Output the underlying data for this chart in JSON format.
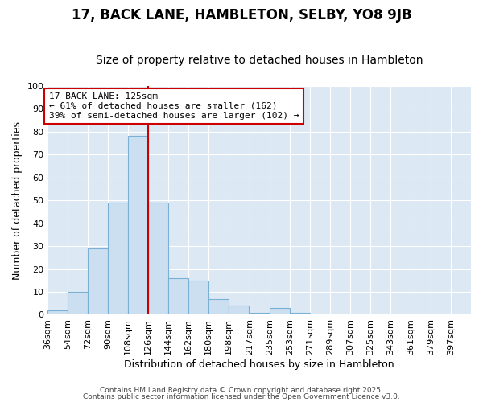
{
  "title": "17, BACK LANE, HAMBLETON, SELBY, YO8 9JB",
  "subtitle": "Size of property relative to detached houses in Hambleton",
  "xlabel": "Distribution of detached houses by size in Hambleton",
  "ylabel": "Number of detached properties",
  "bin_labels": [
    "36sqm",
    "54sqm",
    "72sqm",
    "90sqm",
    "108sqm",
    "126sqm",
    "144sqm",
    "162sqm",
    "180sqm",
    "198sqm",
    "217sqm",
    "235sqm",
    "253sqm",
    "271sqm",
    "289sqm",
    "307sqm",
    "325sqm",
    "343sqm",
    "361sqm",
    "379sqm",
    "397sqm"
  ],
  "bin_edges": [
    36,
    54,
    72,
    90,
    108,
    126,
    144,
    162,
    180,
    198,
    217,
    235,
    253,
    271,
    289,
    307,
    325,
    343,
    361,
    379,
    397
  ],
  "bar_heights": [
    2,
    10,
    29,
    49,
    78,
    49,
    16,
    15,
    7,
    4,
    1,
    3,
    1,
    0,
    0,
    0,
    0,
    0,
    0,
    0,
    0
  ],
  "bar_color": "#ccdff0",
  "bar_edge_color": "#7ab0d4",
  "vline_x": 126,
  "vline_color": "#cc0000",
  "annotation_line1": "17 BACK LANE: 125sqm",
  "annotation_line2": "← 61% of detached houses are smaller (162)",
  "annotation_line3": "39% of semi-detached houses are larger (102) →",
  "annotation_box_color": "#ffffff",
  "annotation_box_edge": "#cc0000",
  "ylim": [
    0,
    100
  ],
  "yticks": [
    0,
    10,
    20,
    30,
    40,
    50,
    60,
    70,
    80,
    90,
    100
  ],
  "background_color": "#ffffff",
  "plot_area_color": "#dce9f5",
  "grid_color": "#ffffff",
  "footer1": "Contains HM Land Registry data © Crown copyright and database right 2025.",
  "footer2": "Contains public sector information licensed under the Open Government Licence v3.0.",
  "title_fontsize": 12,
  "subtitle_fontsize": 10,
  "xlabel_fontsize": 9,
  "ylabel_fontsize": 9,
  "tick_fontsize": 8,
  "annotation_fontsize": 8
}
